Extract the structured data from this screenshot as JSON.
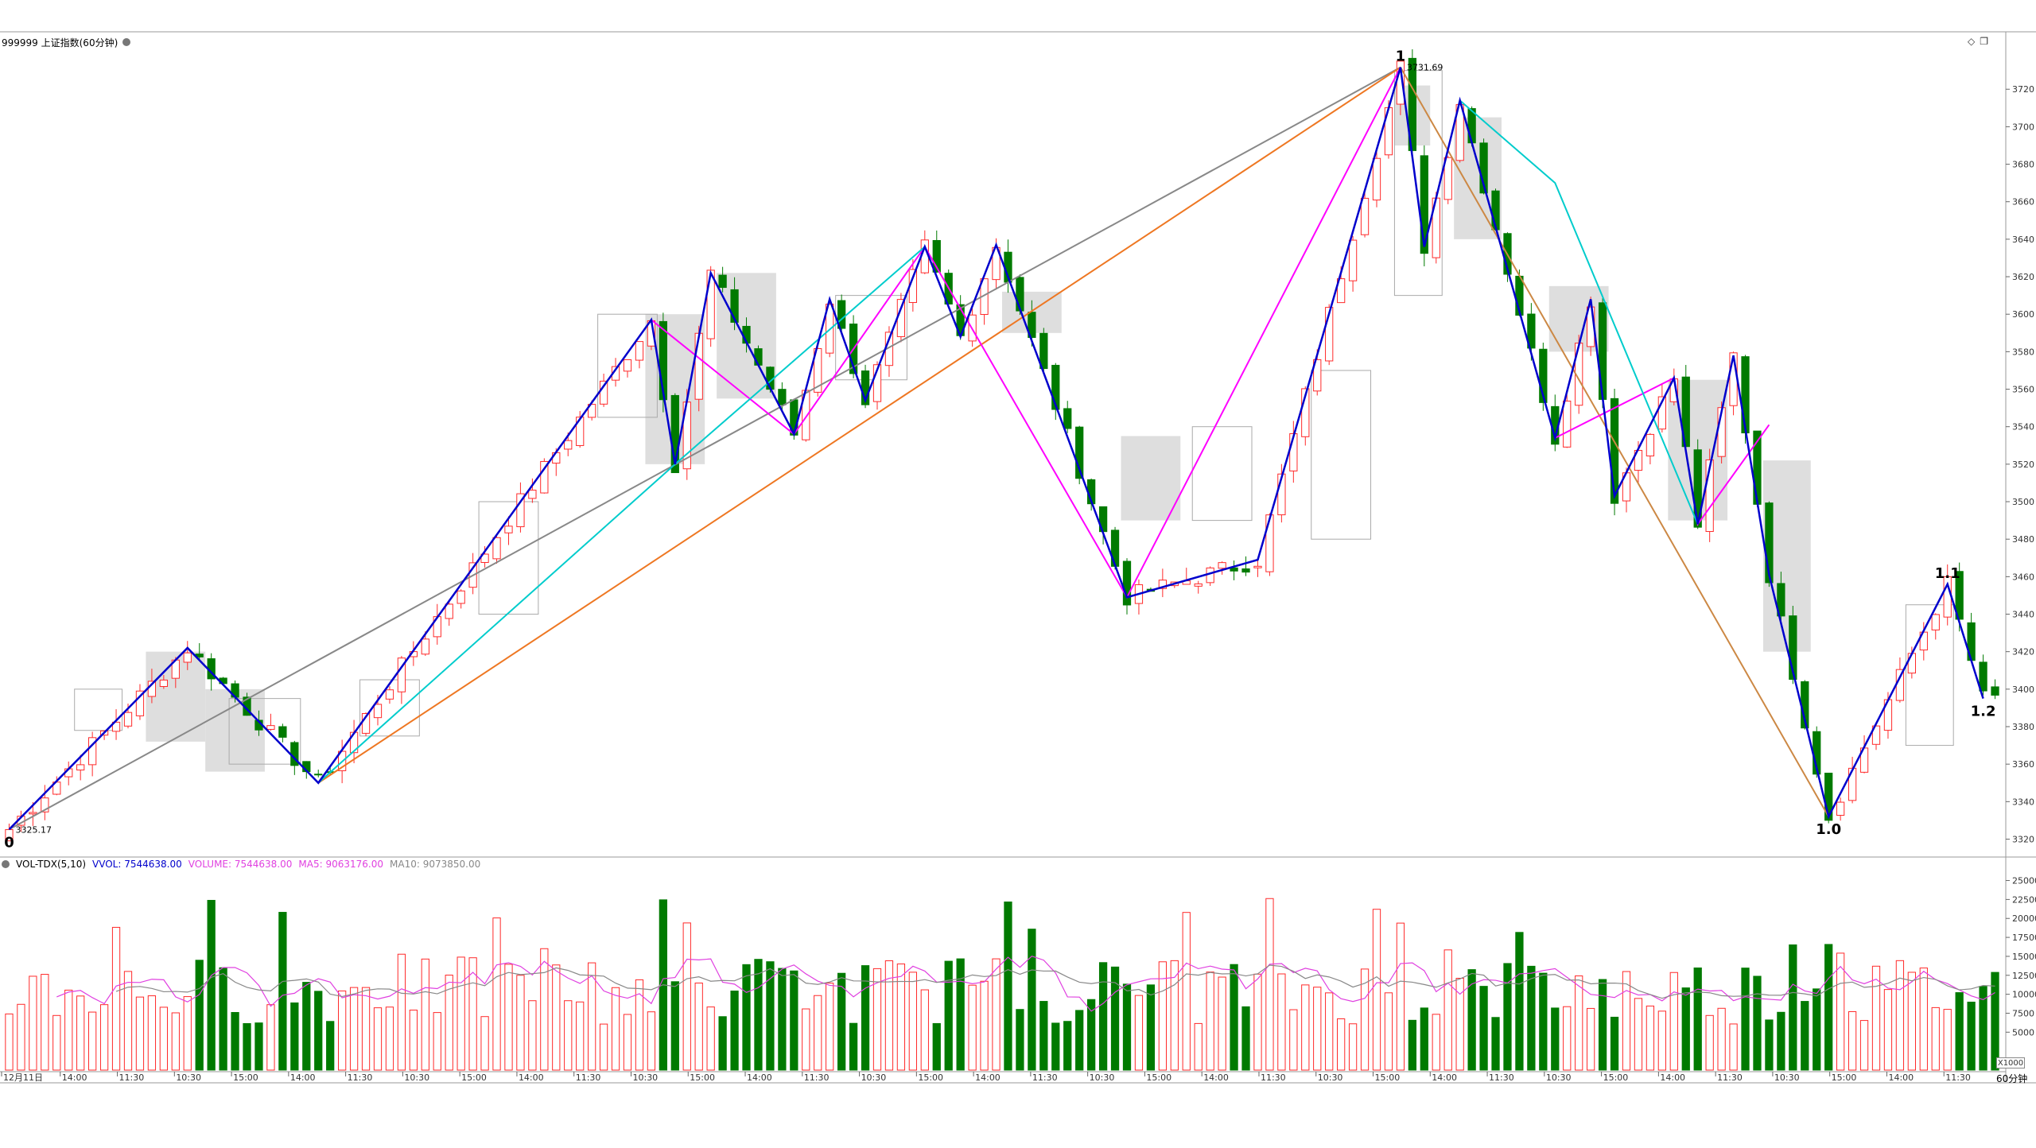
{
  "header": {
    "title": "999999 上证指数(60分钟)"
  },
  "volume_header": {
    "indicator": "VOL-TDX(5,10)",
    "vvol": "VVOL: 7544638.00",
    "volume": "VOLUME: 7544638.00",
    "ma5": "MA5: 9063176.00",
    "ma10": "MA10: 9073850.00"
  },
  "colors": {
    "up": "#ff2a2a",
    "down": "#007a00",
    "blue_line": "#0000cc",
    "magenta_line": "#ff00ff",
    "cyan_line": "#00cccc",
    "gray_line": "#888888",
    "orange_line": "#ee7722",
    "brown_line": "#cc8844",
    "ma5_line": "#e040e0",
    "ma10_line": "#888888",
    "axis_text": "#333333"
  },
  "chart_data": [
    {
      "type": "candlestick",
      "title": "999999 上证指数(60分钟)",
      "y_ticks": [
        3320,
        3340,
        3360,
        3380,
        3400,
        3420,
        3440,
        3460,
        3480,
        3500,
        3520,
        3540,
        3560,
        3580,
        3600,
        3620,
        3640,
        3660,
        3680,
        3700,
        3720
      ],
      "ylim": [
        3313,
        3743
      ],
      "x_ticks": [
        "12月11日",
        "14:00",
        "11:30",
        "10:30",
        "15:00",
        "14:00",
        "11:30",
        "10:30",
        "15:00",
        "14:00",
        "11:30",
        "10:30",
        "15:00",
        "14:00",
        "11:30",
        "10:30",
        "15:00",
        "14:00",
        "11:30",
        "10:30",
        "15:00",
        "14:00",
        "11:30",
        "10:30",
        "15:00",
        "14:00",
        "11:30",
        "10:30",
        "15:00",
        "14:00",
        "11:30",
        "10:30",
        "15:00",
        "14:00",
        "11:30"
      ],
      "bar_count": 168,
      "wave_points": [
        {
          "i": 0,
          "v": 3325.17
        },
        {
          "i": 15,
          "v": 3422
        },
        {
          "i": 26,
          "v": 3350
        },
        {
          "i": 54,
          "v": 3597
        },
        {
          "i": 56,
          "v": 3520
        },
        {
          "i": 59,
          "v": 3622
        },
        {
          "i": 66,
          "v": 3536
        },
        {
          "i": 69,
          "v": 3608
        },
        {
          "i": 72,
          "v": 3554
        },
        {
          "i": 77,
          "v": 3636
        },
        {
          "i": 80,
          "v": 3588
        },
        {
          "i": 83,
          "v": 3637
        },
        {
          "i": 94,
          "v": 3449
        },
        {
          "i": 105,
          "v": 3469
        },
        {
          "i": 117,
          "v": 3731.69
        },
        {
          "i": 119,
          "v": 3636
        },
        {
          "i": 122,
          "v": 3714
        },
        {
          "i": 130,
          "v": 3534
        },
        {
          "i": 133,
          "v": 3608
        },
        {
          "i": 135,
          "v": 3503
        },
        {
          "i": 140,
          "v": 3566
        },
        {
          "i": 142,
          "v": 3488
        },
        {
          "i": 145,
          "v": 3578
        },
        {
          "i": 148,
          "v": 3461
        },
        {
          "i": 153,
          "v": 3332
        },
        {
          "i": 163,
          "v": 3456
        },
        {
          "i": 166,
          "v": 3395
        }
      ],
      "pattern_lines": [
        {
          "color": "gray",
          "from": {
            "i": 0,
            "v": 3325.17
          },
          "to": {
            "i": 117,
            "v": 3731.69
          }
        },
        {
          "color": "orange",
          "from": {
            "i": 26,
            "v": 3350
          },
          "to": {
            "i": 117,
            "v": 3731.69
          }
        },
        {
          "color": "brown",
          "from": {
            "i": 117,
            "v": 3731.69
          },
          "to": {
            "i": 153,
            "v": 3332
          }
        },
        {
          "color": "magenta",
          "points": [
            {
              "i": 26,
              "v": 3350
            },
            {
              "i": 54,
              "v": 3597
            },
            {
              "i": 66,
              "v": 3536
            },
            {
              "i": 77,
              "v": 3636
            },
            {
              "i": 94,
              "v": 3449
            },
            {
              "i": 117,
              "v": 3731.69
            }
          ]
        },
        {
          "color": "magenta",
          "points": [
            {
              "i": 130,
              "v": 3534
            },
            {
              "i": 140,
              "v": 3566
            },
            {
              "i": 142,
              "v": 3488
            },
            {
              "i": 148,
              "v": 3541
            }
          ]
        },
        {
          "color": "cyan",
          "points": [
            {
              "i": 26,
              "v": 3350
            },
            {
              "i": 56,
              "v": 3520
            },
            {
              "i": 77,
              "v": 3636
            }
          ]
        },
        {
          "color": "cyan",
          "points": [
            {
              "i": 122,
              "v": 3714
            },
            {
              "i": 130,
              "v": 3670
            },
            {
              "i": 142,
              "v": 3488
            }
          ]
        }
      ],
      "annotations": [
        {
          "text": "0",
          "i": 0,
          "v": 3325.17,
          "pos": "below"
        },
        {
          "text": "3325.17",
          "i": 0,
          "v": 3325.17,
          "pos": "right"
        },
        {
          "text": "1",
          "i": 117,
          "v": 3731.69,
          "pos": "above"
        },
        {
          "text": "3731.69",
          "i": 117,
          "v": 3731.69,
          "pos": "right"
        },
        {
          "text": "1.0",
          "i": 153,
          "v": 3332,
          "pos": "below"
        },
        {
          "text": "1.1",
          "i": 163,
          "v": 3456,
          "pos": "above"
        },
        {
          "text": "1.2",
          "i": 166,
          "v": 3395,
          "pos": "below"
        }
      ]
    },
    {
      "type": "bar",
      "title": "VOL-TDX(5,10)",
      "y_ticks": [
        5000,
        7500,
        10000,
        12500,
        15000,
        17500,
        20000,
        22500,
        25000
      ],
      "ylim": [
        0,
        26000
      ],
      "unit": "X1000",
      "series": [
        {
          "name": "VOLUME",
          "values": "one bar per candle, up = hollow red, down = solid green"
        },
        {
          "name": "MA5"
        },
        {
          "name": "MA10"
        }
      ]
    }
  ],
  "footer": {
    "unit_box": "X1000",
    "period": "60分钟"
  },
  "corner": {
    "icons": [
      "diamond-icon",
      "window-icon"
    ]
  }
}
